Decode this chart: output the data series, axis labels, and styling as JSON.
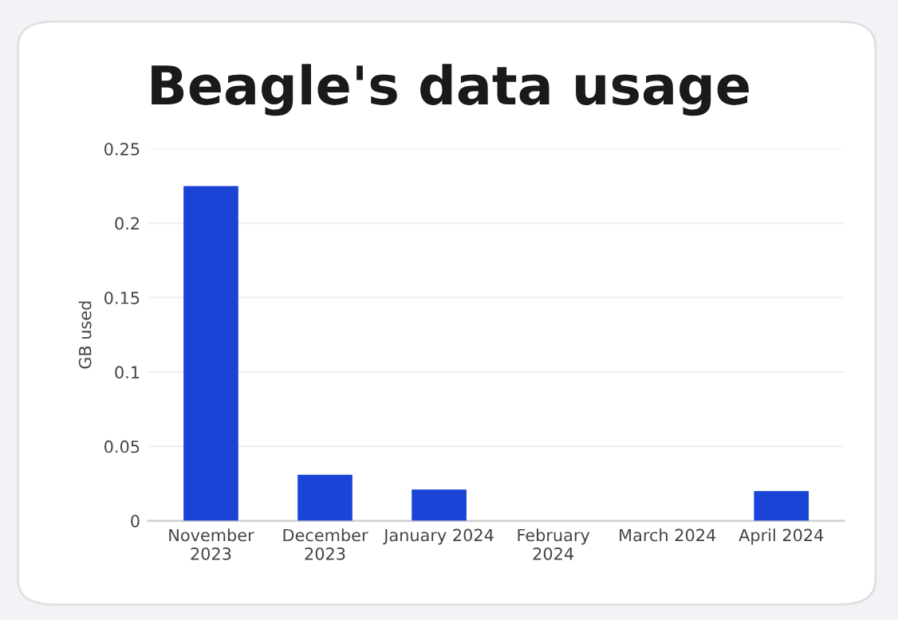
{
  "chart_data": {
    "type": "bar",
    "title": "Beagle's data usage",
    "ylabel": "GB used",
    "categories": [
      "November\n2023",
      "December\n2023",
      "January 2024",
      "February\n2024",
      "March 2024",
      "April 2024"
    ],
    "values": [
      0.225,
      0.031,
      0.021,
      0,
      0,
      0.02
    ],
    "color": "#1a44d6",
    "ylim": [
      0,
      0.25
    ],
    "yticks": [
      0,
      0.05,
      0.1,
      0.15,
      0.2,
      0.25
    ],
    "grid": "y"
  }
}
